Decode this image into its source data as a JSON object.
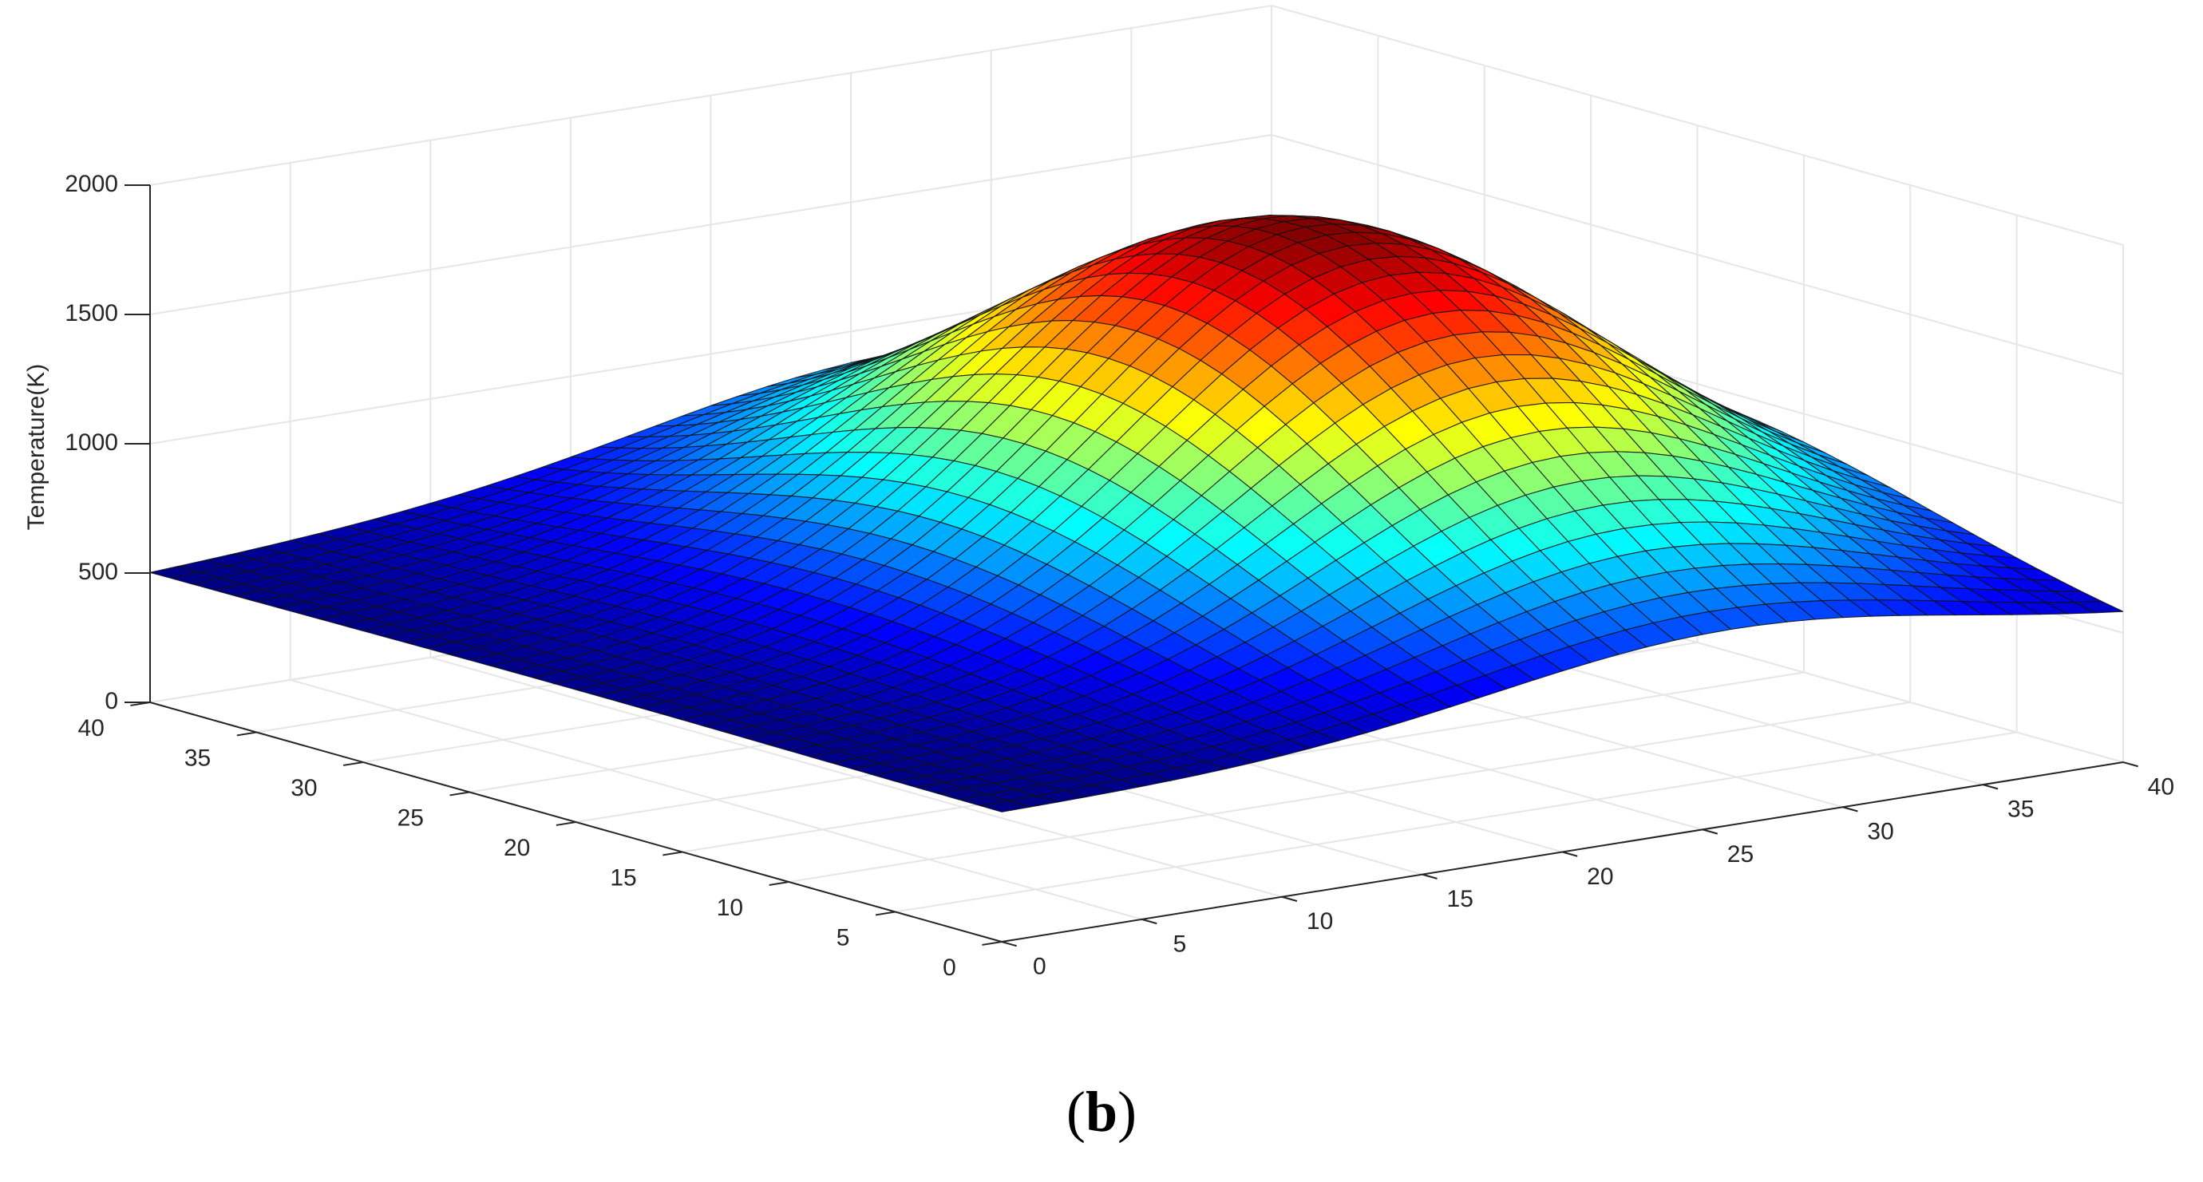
{
  "panel_label": {
    "open": "(",
    "letter": "b",
    "close": ")"
  },
  "chart_data": {
    "type": "surface",
    "title": "",
    "xlabel": "",
    "ylabel": "",
    "zlabel": "Temperature(K)",
    "x_ticks": [
      0,
      5,
      10,
      15,
      20,
      25,
      30,
      35,
      40
    ],
    "y_ticks": [
      0,
      5,
      10,
      15,
      20,
      25,
      30,
      35,
      40
    ],
    "z_ticks": [
      0,
      500,
      1000,
      1500,
      2000
    ],
    "xlim": [
      0,
      40
    ],
    "ylim": [
      0,
      40
    ],
    "zlim": [
      0,
      2000
    ],
    "grid": true,
    "colormap": "jet",
    "color_range": [
      500,
      1850
    ],
    "mesh_grid_points": 41,
    "peak": {
      "x": 26,
      "y": 20,
      "z": 1850
    },
    "corner_values": {
      "x0_y0": 500,
      "x40_y0": 520,
      "x0_y40": 500,
      "x40_y40": 720
    }
  }
}
